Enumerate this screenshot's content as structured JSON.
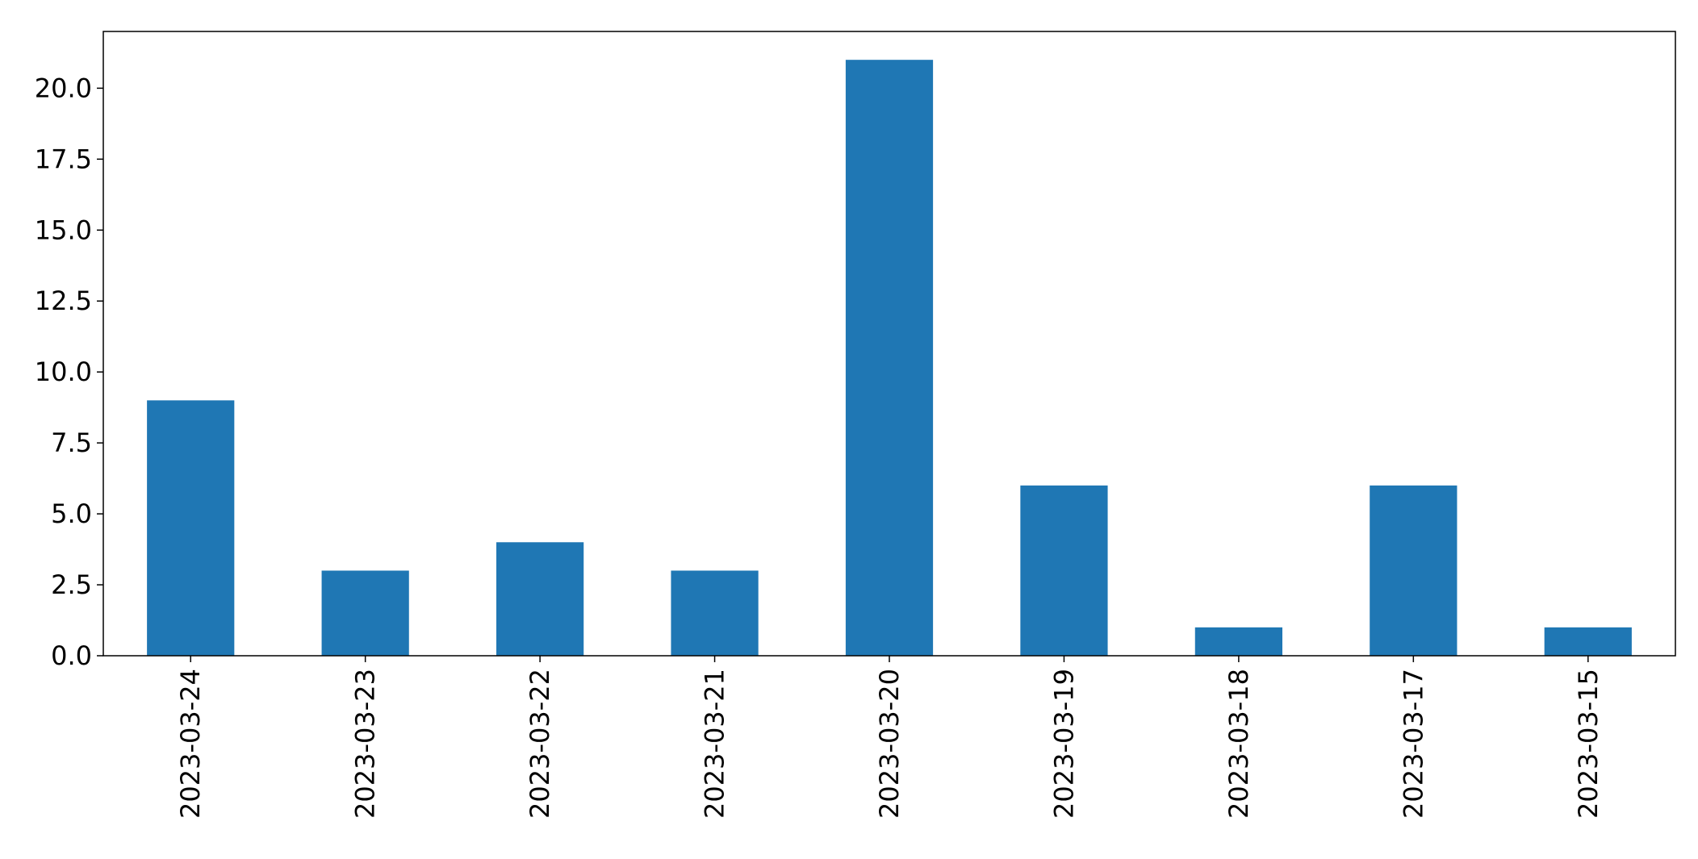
{
  "chart_data": {
    "type": "bar",
    "title": "",
    "xlabel": "",
    "ylabel": "",
    "categories": [
      "2023-03-24",
      "2023-03-23",
      "2023-03-22",
      "2023-03-21",
      "2023-03-20",
      "2023-03-19",
      "2023-03-18",
      "2023-03-17",
      "2023-03-15"
    ],
    "values": [
      9,
      3,
      4,
      3,
      21,
      6,
      1,
      6,
      1
    ],
    "ylim": [
      0,
      22
    ],
    "yticks": [
      "0.0",
      "2.5",
      "5.0",
      "7.5",
      "10.0",
      "12.5",
      "15.0",
      "17.5",
      "20.0"
    ],
    "grid": false,
    "legend": "none",
    "bar_color": "#1f77b4"
  }
}
